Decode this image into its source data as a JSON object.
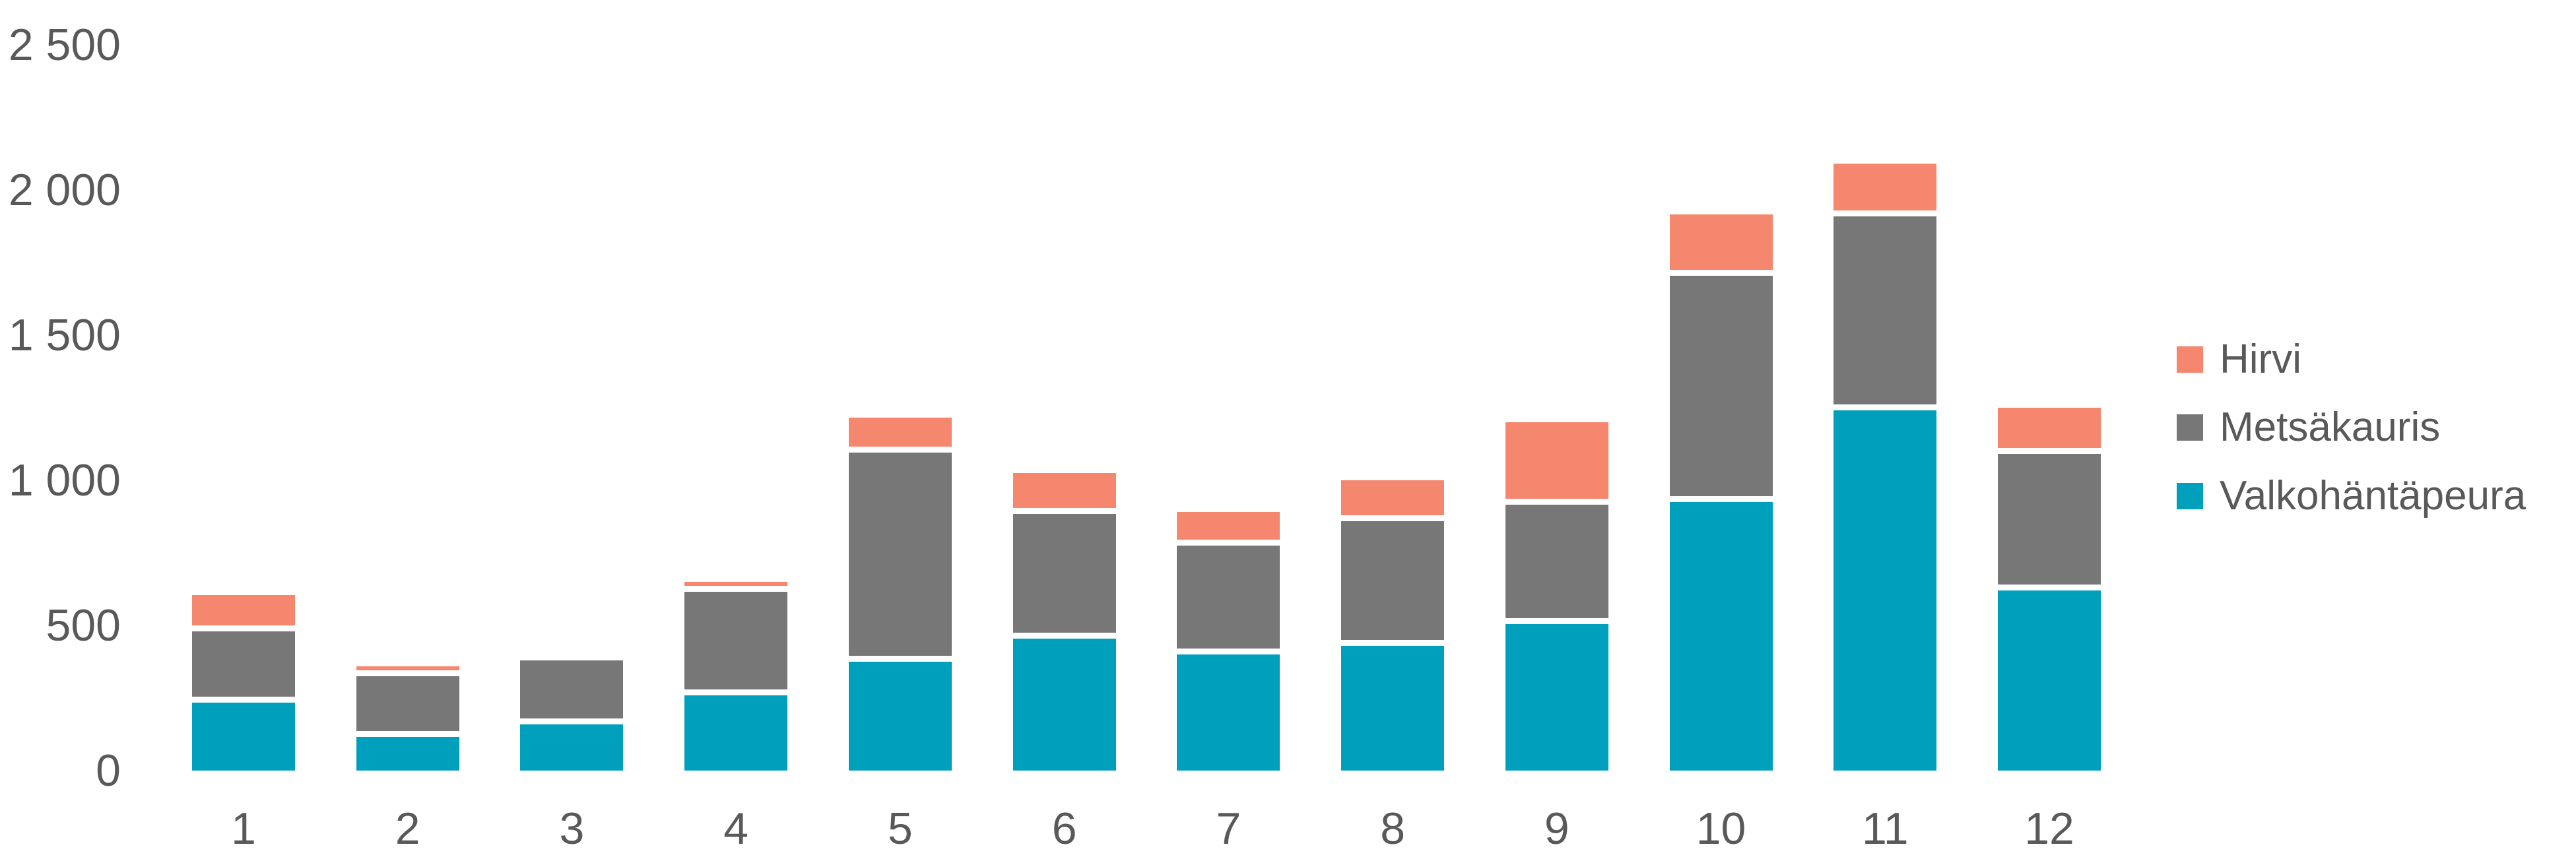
{
  "chart_data": {
    "type": "bar",
    "stacked": true,
    "title": "",
    "xlabel": "",
    "ylabel": "",
    "categories": [
      "1",
      "2",
      "3",
      "4",
      "5",
      "6",
      "7",
      "8",
      "9",
      "10",
      "11",
      "12"
    ],
    "series": [
      {
        "name": "Valkohäntäpeura",
        "color": "#00A0BD",
        "values": [
          235,
          115,
          160,
          260,
          375,
          455,
          400,
          430,
          505,
          925,
          1240,
          620
        ]
      },
      {
        "name": "Metsäkauris",
        "color": "#777777",
        "values": [
          245,
          210,
          220,
          355,
          720,
          430,
          375,
          430,
          410,
          780,
          670,
          470
        ]
      },
      {
        "name": "Hirvi",
        "color": "#F5876F",
        "values": [
          125,
          35,
          0,
          35,
          120,
          140,
          115,
          140,
          285,
          210,
          180,
          160
        ]
      }
    ],
    "legend_order_top_to_bottom": [
      "Hirvi",
      "Metsäkauris",
      "Valkohäntäpeura"
    ],
    "legend_position": "right-middle",
    "ylim": [
      0,
      2500
    ],
    "y_ticks": [
      0,
      500,
      1000,
      1500,
      2000,
      2500
    ],
    "y_tick_labels": [
      "0",
      "500",
      "1 000",
      "1 500",
      "2 000",
      "2 500"
    ],
    "grid": false
  },
  "colors": {
    "background": "#FFFFFF",
    "axis_text": "#595959",
    "segment_gap": "#FFFFFF"
  }
}
